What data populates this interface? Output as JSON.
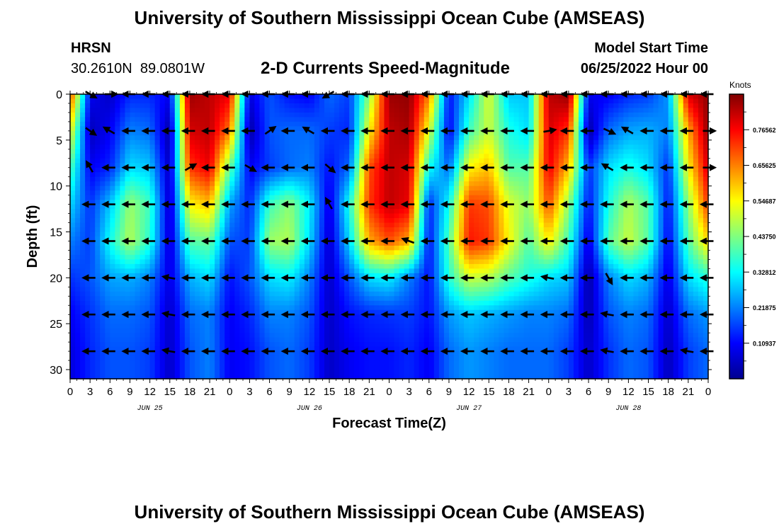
{
  "header": {
    "title": "University of Southern Mississippi Ocean Cube (AMSEAS)",
    "station": "HRSN",
    "coordinates": "30.2610N  89.0801W",
    "product": "2-D Currents Speed-Magnitude",
    "model_start_label": "Model Start Time",
    "model_start_value": "06/25/2022 Hour 00"
  },
  "footer": {
    "title": "University of Southern Mississippi Ocean Cube (AMSEAS)"
  },
  "colors": {
    "arrow": "#000000",
    "frame": "#000000"
  },
  "chart_data": {
    "type": "heatmap",
    "xlabel": "Forecast Time(Z)",
    "ylabel": "Depth (ft)",
    "xlim": [
      0,
      96
    ],
    "ylim": [
      31,
      0
    ],
    "x_tick_values": [
      0,
      3,
      6,
      9,
      12,
      15,
      18,
      21,
      24,
      27,
      30,
      33,
      36,
      39,
      42,
      45,
      48,
      51,
      54,
      57,
      60,
      63,
      66,
      69,
      72,
      75,
      78,
      81,
      84,
      87,
      90,
      93,
      96
    ],
    "x_tick_labels": [
      "0",
      "3",
      "6",
      "9",
      "12",
      "15",
      "18",
      "21",
      "0",
      "3",
      "6",
      "9",
      "12",
      "15",
      "18",
      "21",
      "0",
      "3",
      "6",
      "9",
      "12",
      "15",
      "18",
      "21",
      "0",
      "3",
      "6",
      "9",
      "12",
      "15",
      "18",
      "21",
      "0"
    ],
    "date_labels": [
      {
        "hour": 12,
        "text": "JUN 25"
      },
      {
        "hour": 36,
        "text": "JUN 26"
      },
      {
        "hour": 60,
        "text": "JUN 27"
      },
      {
        "hour": 84,
        "text": "JUN 28"
      }
    ],
    "y_ticks": [
      0,
      5,
      10,
      15,
      20,
      25,
      30
    ],
    "colorbar": {
      "label": "Knots",
      "min": 0,
      "max": 0.875,
      "tick_values": [
        0.10937,
        0.21875,
        0.32812,
        0.4375,
        0.54687,
        0.65625,
        0.76562
      ],
      "tick_labels": [
        "0.10937",
        "0.21875",
        "0.32812",
        "0.43750",
        "0.54687",
        "0.65625",
        "0.76562"
      ],
      "colormap": "jet"
    },
    "depth_levels": [
      0,
      4,
      8,
      12,
      16,
      20,
      24,
      28
    ],
    "times": [
      0,
      3,
      6,
      9,
      12,
      15,
      18,
      21,
      24,
      27,
      30,
      33,
      36,
      39,
      42,
      45,
      48,
      51,
      54,
      57,
      60,
      63,
      66,
      69,
      72,
      75,
      78,
      81,
      84,
      87,
      90,
      93,
      96
    ],
    "speed": [
      [
        0.72,
        0.1,
        0.06,
        0.14,
        0.14,
        0.1,
        0.85,
        0.82,
        0.78,
        0.08,
        0.18,
        0.12,
        0.1,
        0.2,
        0.16,
        0.45,
        0.85,
        0.86,
        0.66,
        0.12,
        0.3,
        0.52,
        0.28,
        0.28,
        0.82,
        0.86,
        0.1,
        0.1,
        0.14,
        0.16,
        0.24,
        0.8,
        0.86
      ],
      [
        0.55,
        0.05,
        0.1,
        0.22,
        0.2,
        0.03,
        0.8,
        0.82,
        0.66,
        0.03,
        0.18,
        0.2,
        0.2,
        0.16,
        0.14,
        0.55,
        0.82,
        0.84,
        0.52,
        0.1,
        0.38,
        0.5,
        0.35,
        0.3,
        0.8,
        0.72,
        0.03,
        0.2,
        0.25,
        0.26,
        0.22,
        0.62,
        0.86
      ],
      [
        0.4,
        0.1,
        0.14,
        0.3,
        0.28,
        0.05,
        0.72,
        0.78,
        0.42,
        0.1,
        0.16,
        0.2,
        0.22,
        0.12,
        0.2,
        0.7,
        0.82,
        0.8,
        0.34,
        0.2,
        0.55,
        0.6,
        0.4,
        0.4,
        0.78,
        0.6,
        0.15,
        0.3,
        0.35,
        0.3,
        0.15,
        0.55,
        0.8
      ],
      [
        0.3,
        0.15,
        0.28,
        0.46,
        0.38,
        0.05,
        0.55,
        0.6,
        0.25,
        0.14,
        0.38,
        0.45,
        0.32,
        0.08,
        0.35,
        0.72,
        0.82,
        0.78,
        0.14,
        0.34,
        0.72,
        0.7,
        0.52,
        0.45,
        0.7,
        0.45,
        0.12,
        0.35,
        0.48,
        0.4,
        0.12,
        0.45,
        0.72
      ],
      [
        0.22,
        0.16,
        0.34,
        0.48,
        0.36,
        0.06,
        0.4,
        0.42,
        0.18,
        0.16,
        0.46,
        0.48,
        0.3,
        0.06,
        0.3,
        0.62,
        0.7,
        0.62,
        0.12,
        0.4,
        0.75,
        0.72,
        0.55,
        0.4,
        0.56,
        0.38,
        0.08,
        0.4,
        0.5,
        0.4,
        0.1,
        0.4,
        0.58
      ],
      [
        0.15,
        0.18,
        0.25,
        0.26,
        0.22,
        0.08,
        0.26,
        0.3,
        0.12,
        0.18,
        0.3,
        0.32,
        0.22,
        0.06,
        0.18,
        0.3,
        0.32,
        0.22,
        0.12,
        0.36,
        0.5,
        0.48,
        0.4,
        0.35,
        0.3,
        0.28,
        0.03,
        0.22,
        0.3,
        0.26,
        0.08,
        0.3,
        0.36
      ],
      [
        0.1,
        0.15,
        0.2,
        0.2,
        0.18,
        0.06,
        0.2,
        0.22,
        0.1,
        0.14,
        0.22,
        0.22,
        0.18,
        0.06,
        0.12,
        0.14,
        0.15,
        0.16,
        0.12,
        0.24,
        0.28,
        0.26,
        0.24,
        0.22,
        0.22,
        0.2,
        0.04,
        0.18,
        0.22,
        0.2,
        0.06,
        0.2,
        0.24
      ],
      [
        0.08,
        0.14,
        0.18,
        0.18,
        0.16,
        0.06,
        0.18,
        0.22,
        0.1,
        0.12,
        0.18,
        0.2,
        0.16,
        0.06,
        0.1,
        0.12,
        0.12,
        0.14,
        0.1,
        0.2,
        0.24,
        0.22,
        0.2,
        0.2,
        0.2,
        0.16,
        0.06,
        0.15,
        0.2,
        0.18,
        0.05,
        0.16,
        0.2
      ]
    ],
    "arrow_times": [
      3,
      6,
      9,
      12,
      15,
      18,
      21,
      24,
      27,
      30,
      33,
      36,
      39,
      42,
      45,
      48,
      51,
      54,
      57,
      60,
      63,
      66,
      69,
      72,
      75,
      78,
      81,
      84,
      87,
      90,
      93,
      96
    ],
    "arrow_angles_deg": [
      [
        -30,
        0,
        180,
        180,
        180,
        180,
        180,
        180,
        180,
        180,
        180,
        180,
        -150,
        180,
        180,
        180,
        180,
        180,
        180,
        180,
        180,
        180,
        180,
        180,
        180,
        180,
        180,
        180,
        180,
        180,
        180,
        180
      ],
      [
        -35,
        150,
        180,
        180,
        180,
        180,
        180,
        180,
        180,
        35,
        180,
        150,
        180,
        180,
        180,
        180,
        180,
        180,
        180,
        180,
        180,
        180,
        180,
        10,
        180,
        180,
        -25,
        150,
        180,
        180,
        180,
        0
      ],
      [
        120,
        180,
        180,
        180,
        180,
        30,
        180,
        180,
        -30,
        180,
        180,
        180,
        -40,
        180,
        180,
        180,
        180,
        180,
        180,
        180,
        180,
        180,
        180,
        180,
        180,
        180,
        150,
        180,
        180,
        180,
        180,
        0
      ],
      [
        180,
        180,
        180,
        180,
        180,
        180,
        180,
        180,
        180,
        180,
        180,
        180,
        120,
        180,
        180,
        180,
        180,
        180,
        180,
        180,
        180,
        180,
        180,
        180,
        180,
        180,
        180,
        180,
        180,
        180,
        180,
        180
      ],
      [
        180,
        180,
        180,
        180,
        180,
        180,
        180,
        180,
        180,
        180,
        180,
        180,
        180,
        180,
        180,
        180,
        160,
        180,
        180,
        180,
        180,
        180,
        180,
        180,
        180,
        180,
        180,
        180,
        180,
        180,
        180,
        180
      ],
      [
        180,
        180,
        180,
        180,
        170,
        180,
        180,
        180,
        180,
        180,
        180,
        180,
        180,
        180,
        180,
        180,
        180,
        180,
        180,
        180,
        180,
        180,
        180,
        170,
        180,
        180,
        -60,
        180,
        180,
        180,
        180,
        180
      ],
      [
        180,
        180,
        180,
        180,
        170,
        180,
        180,
        180,
        180,
        180,
        180,
        180,
        180,
        180,
        180,
        180,
        180,
        180,
        180,
        180,
        180,
        180,
        180,
        180,
        180,
        180,
        170,
        180,
        180,
        180,
        180,
        180
      ],
      [
        180,
        180,
        180,
        180,
        170,
        180,
        180,
        180,
        180,
        180,
        180,
        180,
        180,
        180,
        180,
        180,
        180,
        180,
        180,
        180,
        180,
        180,
        180,
        180,
        180,
        180,
        170,
        180,
        180,
        180,
        170,
        180
      ]
    ]
  }
}
